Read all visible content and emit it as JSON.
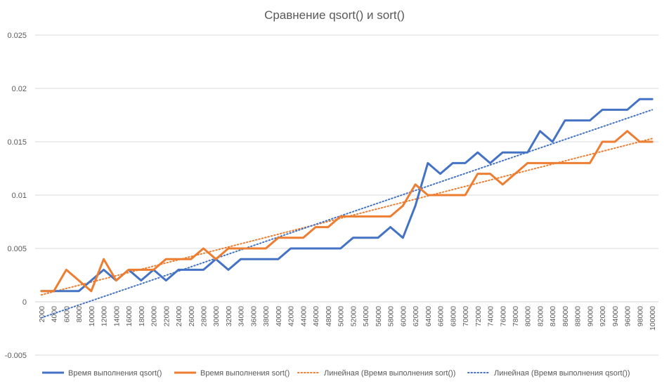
{
  "chart_data": {
    "type": "line",
    "title": "Сравнение qsort() и sort()",
    "xlabel": "",
    "ylabel": "",
    "ylim": [
      -0.005,
      0.025
    ],
    "yticks": [
      "-0.005",
      "0",
      "0.005",
      "0.01",
      "0.015",
      "0.02",
      "0.025"
    ],
    "ytick_values": [
      -0.005,
      0,
      0.005,
      0.01,
      0.015,
      0.02,
      0.025
    ],
    "grid": true,
    "legend_position": "bottom",
    "categories": [
      "2000",
      "4000",
      "6000",
      "8000",
      "10000",
      "12000",
      "14000",
      "16000",
      "18000",
      "20000",
      "22000",
      "24000",
      "26000",
      "28000",
      "30000",
      "32000",
      "34000",
      "36000",
      "38000",
      "40000",
      "42000",
      "44000",
      "46000",
      "48000",
      "50000",
      "52000",
      "54000",
      "56000",
      "58000",
      "60000",
      "62000",
      "64000",
      "66000",
      "68000",
      "70000",
      "72000",
      "74000",
      "76000",
      "78000",
      "80000",
      "82000",
      "84000",
      "86000",
      "88000",
      "90000",
      "92000",
      "94000",
      "96000",
      "98000",
      "100000"
    ],
    "series": [
      {
        "name": "Время выполнения qsort()",
        "color": "#4472C4",
        "values": [
          0.001,
          0.001,
          0.001,
          0.001,
          0.002,
          0.003,
          0.002,
          0.003,
          0.002,
          0.003,
          0.002,
          0.003,
          0.003,
          0.003,
          0.004,
          0.003,
          0.004,
          0.004,
          0.004,
          0.004,
          0.005,
          0.005,
          0.005,
          0.005,
          0.005,
          0.006,
          0.006,
          0.006,
          0.007,
          0.006,
          0.009,
          0.013,
          0.012,
          0.013,
          0.013,
          0.014,
          0.013,
          0.014,
          0.014,
          0.014,
          0.016,
          0.015,
          0.017,
          0.017,
          0.017,
          0.018,
          0.018,
          0.018,
          0.019,
          0.019
        ]
      },
      {
        "name": "Время выполнения sort()",
        "color": "#ED7D31",
        "values": [
          0.001,
          0.001,
          0.003,
          0.002,
          0.001,
          0.004,
          0.002,
          0.003,
          0.003,
          0.003,
          0.004,
          0.004,
          0.004,
          0.005,
          0.004,
          0.005,
          0.005,
          0.005,
          0.005,
          0.006,
          0.006,
          0.006,
          0.007,
          0.007,
          0.008,
          0.008,
          0.008,
          0.008,
          0.008,
          0.009,
          0.011,
          0.01,
          0.01,
          0.01,
          0.01,
          0.012,
          0.012,
          0.011,
          0.012,
          0.013,
          0.013,
          0.013,
          0.013,
          0.013,
          0.013,
          0.015,
          0.015,
          0.016,
          0.015,
          0.015
        ]
      }
    ],
    "trendlines": [
      {
        "name": "Линейная (Время выполнения sort())",
        "color": "#ED7D31",
        "start": 0.00065,
        "end": 0.0153
      },
      {
        "name": "Линейная (Время выполнения qsort())",
        "color": "#4472C4",
        "start": -0.0015,
        "end": 0.018
      }
    ]
  }
}
